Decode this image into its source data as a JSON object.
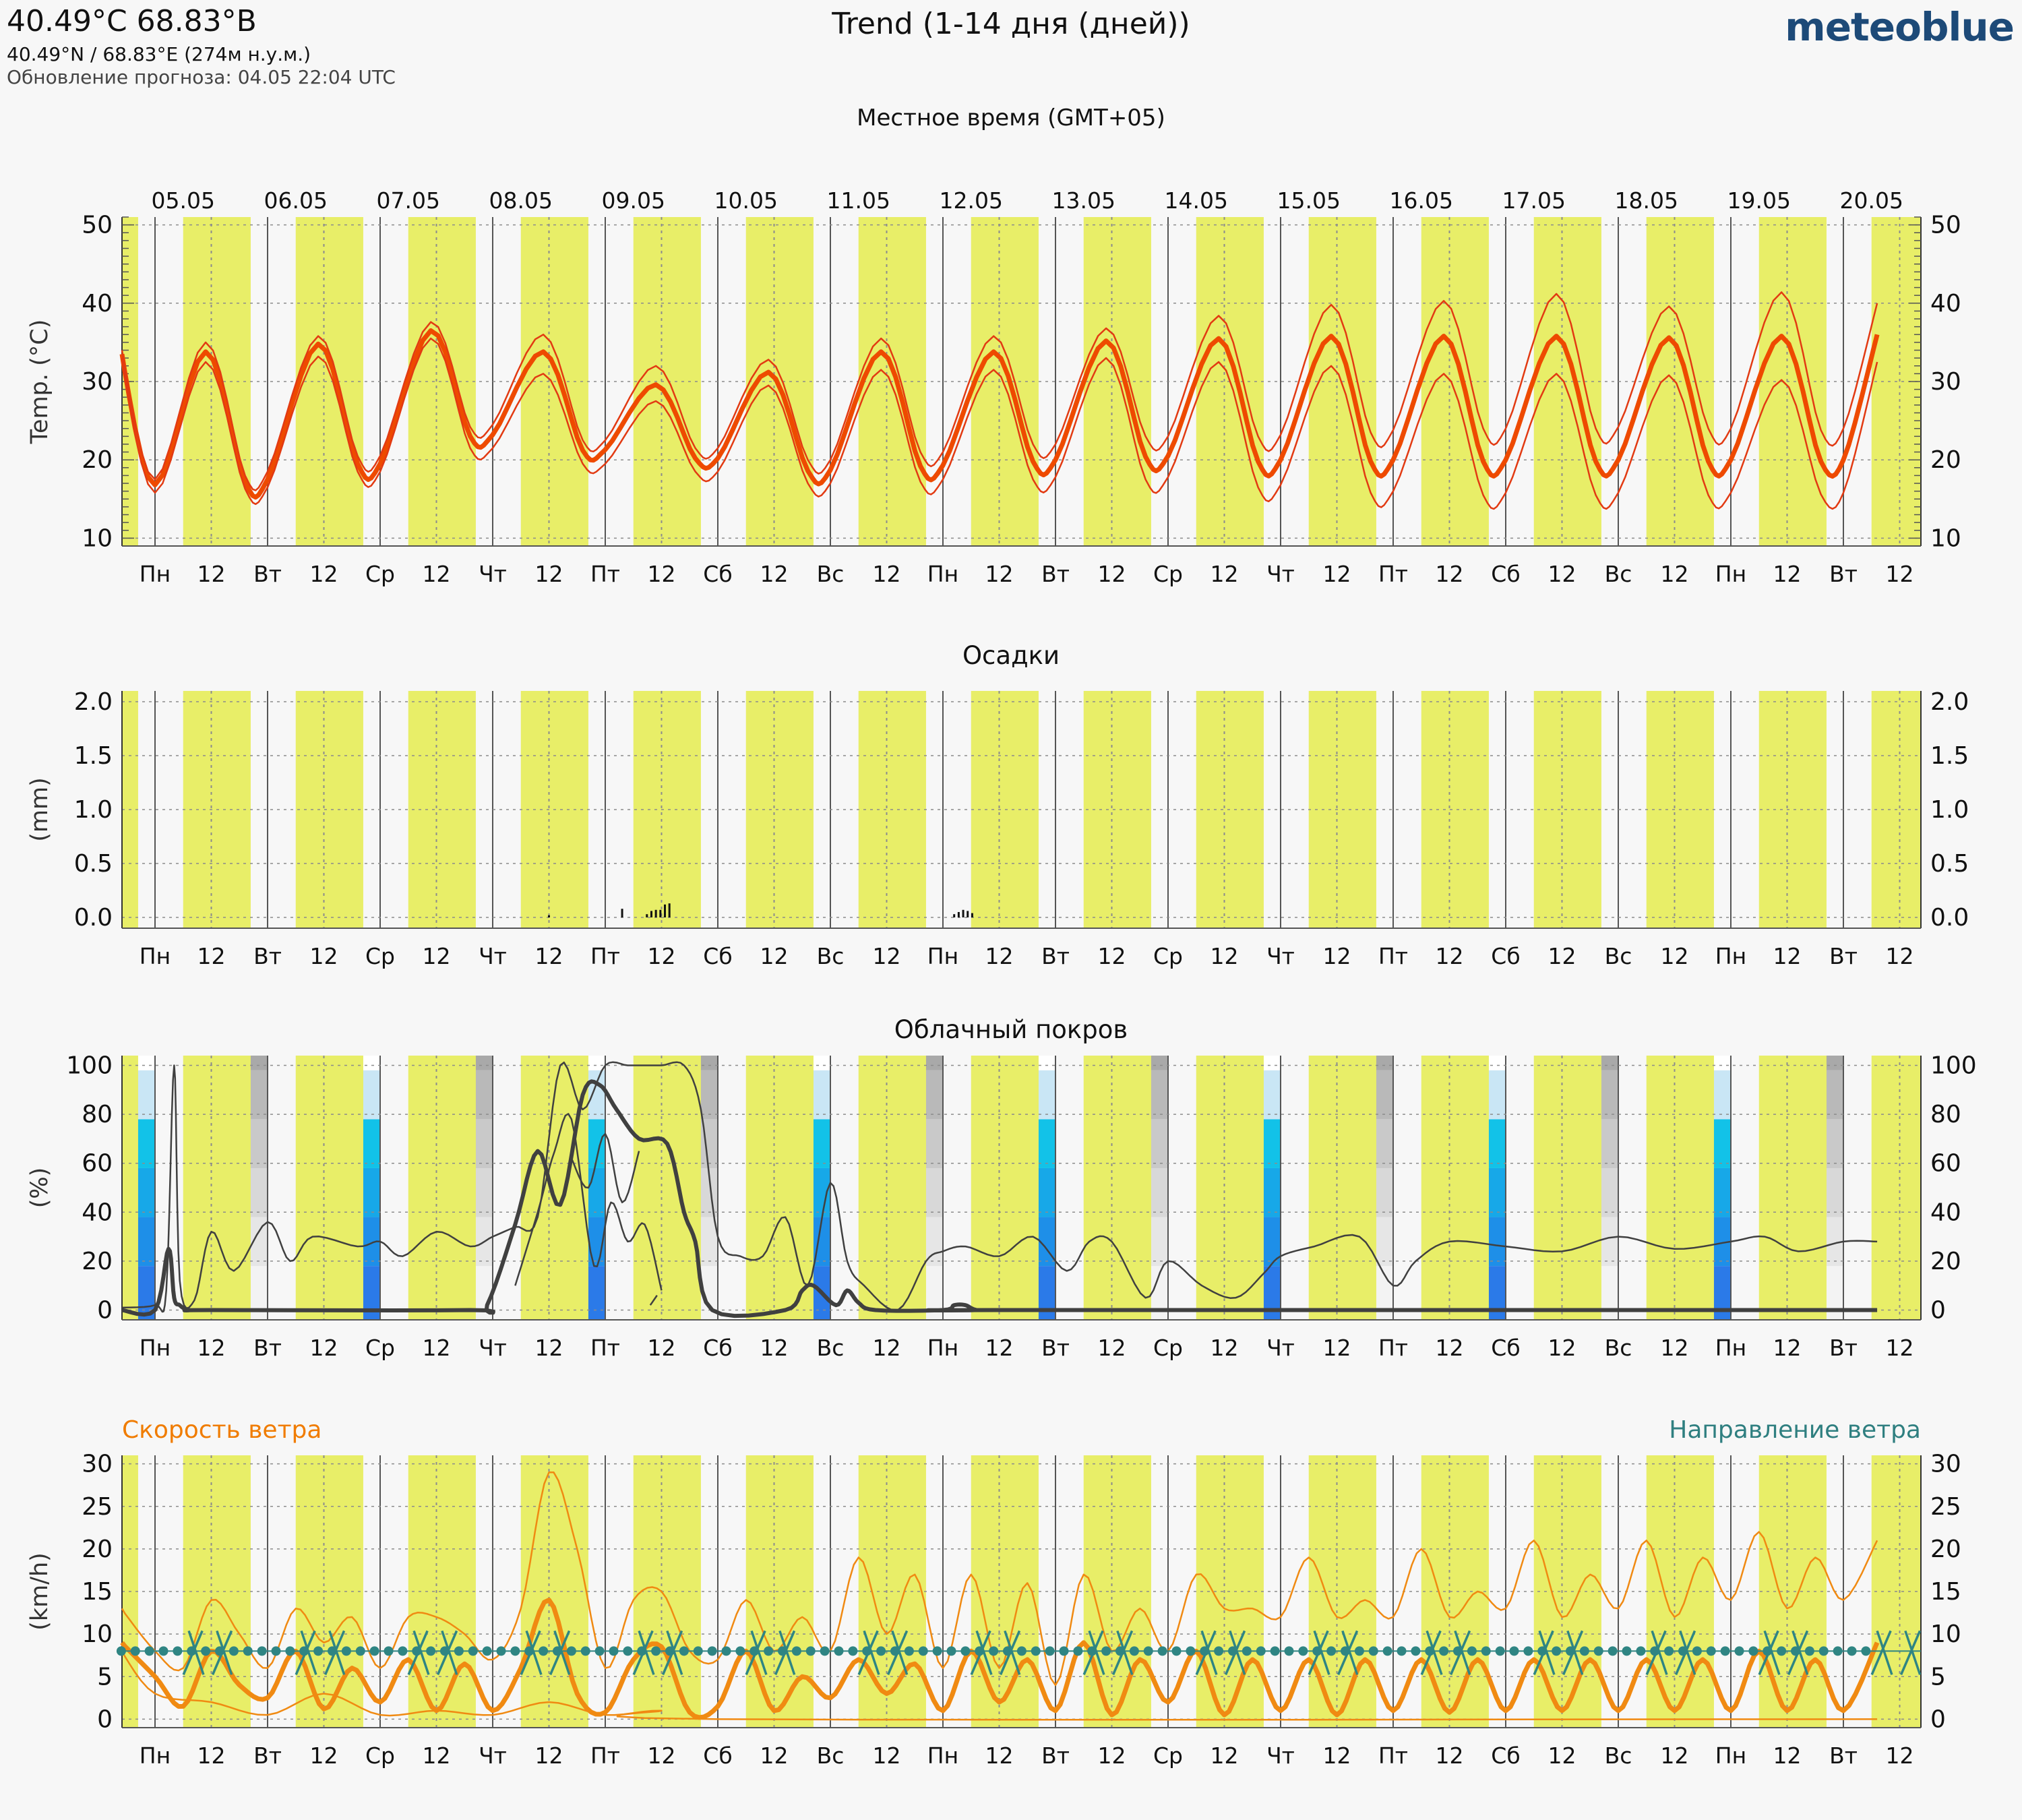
{
  "header": {
    "coord": "40.49°C 68.83°В",
    "sub": "40.49°N / 68.83°E (274м н.у.м.)",
    "updated": "Обновление прогноза: 04.05 22:04 UTC",
    "title": "Trend (1-14 дня (дней))",
    "logo": "meteoblue",
    "timezone": "Местное время (GMT+05)"
  },
  "colors": {
    "day": "#e8ee68",
    "temp_mean": "#ee4a00",
    "temp_range": "#e23a12",
    "cloud_line": "#404040",
    "wind_line": "#f08a12",
    "wind_dir": "#2f8583",
    "wind_label": "#f07c00",
    "dir_label": "#2f7f80",
    "grid": "#8c8c8c"
  },
  "chart_data": {
    "dates": [
      "05.05",
      "06.05",
      "07.05",
      "08.05",
      "09.05",
      "10.05",
      "11.05",
      "12.05",
      "13.05",
      "14.05",
      "15.05",
      "16.05",
      "17.05",
      "18.05",
      "19.05",
      "20.05"
    ],
    "weekday_labels": [
      "Пн",
      "12",
      "Вт",
      "12",
      "Ср",
      "12",
      "Чт",
      "12",
      "Пт",
      "12",
      "Сб",
      "12",
      "Вс",
      "12",
      "Пн",
      "12",
      "Вт",
      "12",
      "Ср",
      "12",
      "Чт",
      "12",
      "Пт",
      "12",
      "Сб",
      "12",
      "Вс",
      "12",
      "Пн",
      "12",
      "Вт",
      "12"
    ],
    "panels": [
      {
        "id": "temperature",
        "type": "line",
        "title": "",
        "ylabel": "Temp. (°C)",
        "ylim": [
          9,
          51
        ],
        "yticks": [
          10,
          20,
          30,
          40,
          50
        ],
        "x_unit": "days from start of 05.05",
        "series": [
          {
            "role": "mean",
            "x": [
              -0.3,
              0.0,
              0.45,
              0.8,
              1.0,
              1.45,
              1.8,
              2.0,
              2.45,
              2.8,
              3.0,
              3.45,
              3.8,
              4.0,
              4.45,
              4.8,
              5.0,
              5.45,
              5.8,
              6.0,
              6.45,
              6.8,
              7.0,
              7.45,
              7.8,
              8.0,
              8.45,
              8.8,
              9.0,
              9.45,
              9.8,
              10.0,
              10.45,
              10.8,
              11.0,
              11.45,
              11.8,
              12.0,
              12.45,
              12.8,
              13.0,
              13.45,
              13.8,
              14.0,
              14.45,
              14.8,
              15.0,
              15.3
            ],
            "y": [
              33.5,
              16.8,
              33.8,
              17.2,
              17.5,
              34.8,
              19.5,
              19.5,
              36.5,
              23,
              23.2,
              33.8,
              21.2,
              21.3,
              29.6,
              20.2,
              20.2,
              31.2,
              18.6,
              18.7,
              33.8,
              19.2,
              19.3,
              33.8,
              19.8,
              20,
              35.2,
              20.4,
              20.5,
              35.5,
              19.8,
              20,
              35.8,
              19.8,
              20,
              35.8,
              19.8,
              20,
              35.8,
              19.8,
              20,
              35.6,
              19.8,
              20,
              35.8,
              19.8,
              20,
              36
            ]
          },
          {
            "role": "upper",
            "x": [
              -0.3,
              0.0,
              0.45,
              0.8,
              1.0,
              1.45,
              1.8,
              2.0,
              2.45,
              2.8,
              3.0,
              3.45,
              3.8,
              4.0,
              4.45,
              4.8,
              5.0,
              5.45,
              5.8,
              6.0,
              6.45,
              6.8,
              7.0,
              7.45,
              7.8,
              8.0,
              8.45,
              8.8,
              9.0,
              9.45,
              9.8,
              10.0,
              10.45,
              10.8,
              11.0,
              11.45,
              11.8,
              12.0,
              12.45,
              12.8,
              13.0,
              13.45,
              13.8,
              14.0,
              14.45,
              14.8,
              15.0,
              15.3
            ],
            "y": [
              34,
              17.5,
              35,
              18,
              18.5,
              35.8,
              20.5,
              20.5,
              37.6,
              24.2,
              24.5,
              36,
              22.5,
              22.5,
              32,
              21.5,
              21.5,
              32.8,
              20,
              20,
              35.5,
              21,
              21,
              35.8,
              22,
              22,
              36.8,
              23,
              23,
              38.4,
              23,
              23.2,
              39.8,
              23.5,
              23.8,
              40.3,
              24,
              24,
              41.2,
              24,
              24.2,
              39.6,
              24,
              24,
              41.4,
              23.8,
              24,
              40
            ]
          },
          {
            "role": "lower",
            "x": [
              -0.3,
              0.0,
              0.45,
              0.8,
              1.0,
              1.45,
              1.8,
              2.0,
              2.45,
              2.8,
              3.0,
              3.45,
              3.8,
              4.0,
              4.45,
              4.8,
              5.0,
              5.45,
              5.8,
              6.0,
              6.45,
              6.8,
              7.0,
              7.45,
              7.8,
              8.0,
              8.45,
              8.8,
              9.0,
              9.45,
              9.8,
              10.0,
              10.45,
              10.8,
              11.0,
              11.45,
              11.8,
              12.0,
              12.45,
              12.8,
              13.0,
              13.45,
              13.8,
              14.0,
              14.45,
              14.8,
              15.0,
              15.3
            ],
            "y": [
              33,
              15.8,
              32.5,
              16.3,
              16.5,
              33.2,
              18.5,
              18.5,
              35.5,
              21.5,
              21.5,
              31,
              19.5,
              19.5,
              27.5,
              18.5,
              18.5,
              29.5,
              17,
              17,
              31.5,
              17.2,
              17.5,
              31.5,
              17.5,
              17.8,
              33,
              17.5,
              17.8,
              32.5,
              16.5,
              16.8,
              32,
              15.8,
              16,
              31,
              15.5,
              15.8,
              31,
              15.5,
              15.8,
              30.8,
              15.5,
              15.8,
              30.2,
              15.6,
              15.8,
              32.5
            ]
          }
        ]
      },
      {
        "id": "precipitation",
        "type": "bar",
        "title": "Осадки",
        "ylabel": "(mm)",
        "ylim": [
          -0.1,
          2.1
        ],
        "yticks": [
          0.0,
          0.5,
          1.0,
          1.5,
          2.0
        ],
        "tick_labels": [
          "0.0",
          "0.5",
          "1.0",
          "1.5",
          "2.0"
        ],
        "x_unit": "days from start of 05.05",
        "bars": {
          "x": [
            3.5,
            4.15,
            4.37,
            4.41,
            4.45,
            4.49,
            4.53,
            4.57,
            7.1,
            7.14,
            7.18,
            7.22,
            7.26
          ],
          "y": [
            0.02,
            0.08,
            0.03,
            0.06,
            0.07,
            0.07,
            0.12,
            0.13,
            0.03,
            0.05,
            0.07,
            0.06,
            0.04
          ]
        }
      },
      {
        "id": "clouds",
        "type": "line",
        "title": "Облачный покров",
        "ylabel": "(%)",
        "ylim": [
          -4,
          104
        ],
        "yticks": [
          0,
          20,
          40,
          60,
          80,
          100
        ],
        "x_unit": "days from start of 05.05",
        "series": [
          {
            "role": "thick",
            "x": [
              -0.3,
              0.0,
              0.12,
              0.17,
              0.22,
              0.3,
              0.5,
              2.8,
              2.95,
              3.2,
              3.4,
              3.6,
              3.8,
              3.95,
              4.1,
              4.3,
              4.55,
              4.7,
              4.8,
              4.95,
              5.6,
              5.75,
              5.85,
              6.05,
              6.15,
              6.25,
              6.4,
              7.0,
              7.1,
              7.2,
              7.3,
              7.5,
              15.3
            ],
            "y": [
              0,
              0,
              25,
              5,
              2,
              0,
              0,
              0,
              2,
              35,
              65,
              43,
              88,
              92,
              82,
              70,
              68,
              40,
              28,
              0,
              0,
              8,
              10,
              2,
              8,
              3,
              0,
              0,
              2,
              2,
              0,
              0,
              0
            ]
          },
          {
            "role": "thin",
            "x": [
              -0.3,
              0.0,
              0.1,
              0.17,
              0.22,
              0.35,
              0.5,
              0.7,
              1.0,
              1.2,
              1.4,
              1.8,
              2.0,
              2.2,
              2.5,
              2.8,
              3.0,
              3.2,
              3.4,
              3.6,
              3.8,
              4.0,
              4.2,
              4.35,
              4.5,
              4.7,
              4.85,
              5.0,
              5.2,
              5.4,
              5.6,
              5.8,
              6.0,
              6.15,
              6.3,
              6.6,
              6.85,
              7.0,
              7.2,
              7.5,
              7.8,
              8.1,
              8.3,
              8.5,
              8.8,
              9.0,
              9.3,
              9.6,
              9.85,
              10.0,
              10.3,
              10.7,
              11.0,
              11.2,
              11.5,
              12.0,
              12.5,
              13.0,
              13.5,
              14.0,
              14.3,
              14.6,
              15.0,
              15.3
            ],
            "y": [
              1,
              2,
              8,
              100,
              12,
              4,
              32,
              16,
              36,
              20,
              30,
              26,
              28,
              22,
              32,
              26,
              30,
              34,
              38,
              100,
              82,
              100,
              100,
              100,
              100,
              100,
              82,
              30,
              22,
              22,
              38,
              10,
              52,
              20,
              10,
              0,
              20,
              24,
              26,
              22,
              30,
              16,
              28,
              28,
              5,
              20,
              10,
              5,
              15,
              22,
              26,
              30,
              10,
              20,
              28,
              26,
              24,
              30,
              25,
              28,
              30,
              24,
              28,
              28
            ]
          },
          {
            "role": "thin",
            "x": [
              3.2,
              3.4,
              3.55,
              3.7,
              3.9,
              4.05,
              4.2,
              4.35,
              4.5
            ],
            "y": [
              10,
              40,
              65,
              78,
              18,
              44,
              28,
              35,
              8
            ]
          },
          {
            "role": "thin",
            "x": [
              3.7,
              3.85,
              4.0,
              4.15,
              4.3
            ],
            "y": [
              62,
              50,
              72,
              44,
              65
            ]
          },
          {
            "role": "thin",
            "x": [
              4.4,
              4.46
            ],
            "y": [
              2,
              6
            ]
          }
        ]
      },
      {
        "id": "wind",
        "type": "line",
        "title": "",
        "label_left": "Скорость ветра",
        "label_right": "Направление ветра",
        "ylabel": "(km/h)",
        "ylim": [
          -1,
          31
        ],
        "yticks": [
          0,
          5,
          10,
          15,
          20,
          25,
          30
        ],
        "x_unit": "days from start of 05.05",
        "series": [
          {
            "role": "mean",
            "x": [
              -0.3,
              0.0,
              0.25,
              0.5,
              0.75,
              1.0,
              1.25,
              1.5,
              1.75,
              2.0,
              2.25,
              2.5,
              2.75,
              3.0,
              3.25,
              3.5,
              3.75,
              4.0,
              4.25,
              4.5,
              4.75,
              5.0,
              5.25,
              5.5,
              5.75,
              6.0,
              6.25,
              6.5,
              6.75,
              7.0,
              7.25,
              7.5,
              7.75,
              8.0,
              8.25,
              8.5,
              8.75,
              9.0,
              9.25,
              9.5,
              9.75,
              10.0,
              10.25,
              10.5,
              10.75,
              11.0,
              11.25,
              11.5,
              11.75,
              12.0,
              12.25,
              12.5,
              12.75,
              13.0,
              13.25,
              13.5,
              13.75,
              14.0,
              14.25,
              14.5,
              14.75,
              15.0,
              15.3
            ],
            "y": [
              9,
              5,
              1.5,
              8,
              4,
              2.5,
              8,
              1.2,
              6,
              2,
              7,
              1,
              6.5,
              1,
              6,
              14,
              3,
              0.8,
              7,
              8.5,
              0.8,
              1.5,
              8,
              1,
              5,
              2.5,
              7,
              3,
              6.5,
              1,
              8,
              2,
              7,
              1,
              9,
              0.5,
              7,
              2,
              8,
              0.5,
              7,
              1,
              7,
              0.5,
              7,
              1,
              7,
              0.8,
              7,
              1,
              7,
              1,
              7,
              1,
              7,
              1,
              7,
              1,
              8,
              1,
              7,
              1,
              9
            ]
          },
          {
            "role": "upper",
            "x": [
              -0.3,
              0.0,
              0.25,
              0.5,
              0.75,
              1.0,
              1.25,
              1.5,
              1.75,
              2.0,
              2.25,
              2.5,
              2.75,
              3.0,
              3.25,
              3.5,
              3.75,
              4.0,
              4.25,
              4.5,
              4.75,
              5.0,
              5.25,
              5.5,
              5.75,
              6.0,
              6.25,
              6.5,
              6.75,
              7.0,
              7.25,
              7.5,
              7.75,
              8.0,
              8.25,
              8.5,
              8.75,
              9.0,
              9.25,
              9.5,
              9.75,
              10.0,
              10.25,
              10.5,
              10.75,
              11.0,
              11.25,
              11.5,
              11.75,
              12.0,
              12.25,
              12.5,
              12.75,
              13.0,
              13.25,
              13.5,
              13.75,
              14.0,
              14.25,
              14.5,
              14.75,
              15.0,
              15.3
            ],
            "y": [
              13,
              8,
              6,
              14,
              10,
              6,
              13,
              9,
              12,
              6,
              12,
              12,
              10,
              7,
              13,
              29,
              20,
              6,
              14,
              15,
              8,
              7,
              14,
              8,
              12,
              8,
              19,
              10,
              17,
              6,
              17,
              6,
              16,
              4,
              17,
              8,
              13,
              8,
              17,
              13,
              13,
              12,
              19,
              12,
              14,
              12,
              20,
              12,
              15,
              13,
              21,
              12,
              17,
              13,
              21,
              12,
              19,
              14,
              22,
              13,
              19,
              14,
              21
            ]
          },
          {
            "role": "lower",
            "x": [
              -0.3,
              0.0,
              0.5,
              1.0,
              1.5,
              2.0,
              2.5,
              3.0,
              3.5,
              4.0,
              4.5,
              5.0,
              15.3
            ],
            "y": [
              8,
              3,
              2,
              0.5,
              3,
              0.5,
              1,
              0.5,
              2,
              0.5,
              1,
              0,
              0
            ]
          }
        ],
        "direction_symbol_row": 8
      }
    ]
  }
}
